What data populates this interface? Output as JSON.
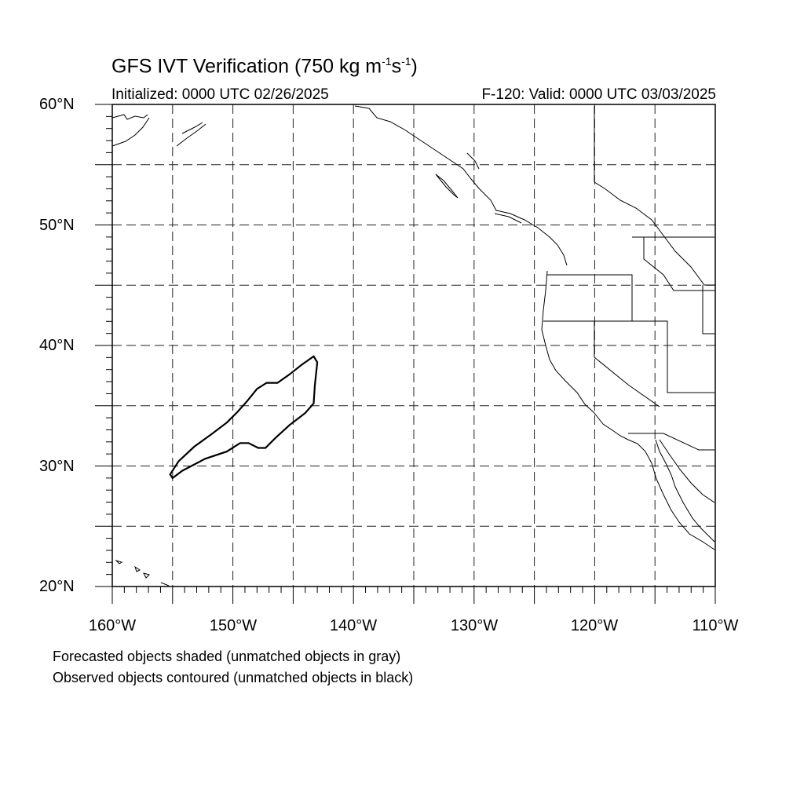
{
  "title": {
    "main": "GFS IVT Verification (750 kg m",
    "exp1": "-1",
    "mid": "s",
    "exp2": "-1",
    "close": ")"
  },
  "initialized": "Initialized: 0000 UTC 02/26/2025",
  "valid": "F-120: Valid: 0000 UTC 03/03/2025",
  "lat_labels": [
    "60°N",
    "50°N",
    "40°N",
    "30°N",
    "20°N"
  ],
  "lon_labels": [
    "160°W",
    "150°W",
    "140°W",
    "130°W",
    "120°W",
    "110°W"
  ],
  "legend_notes": [
    "Forecasted objects shaded (unmatched objects in gray)",
    "Observed objects contoured (unmatched objects in black)"
  ],
  "map": {
    "lon_range": [
      -160,
      -110
    ],
    "lat_range": [
      20,
      60
    ],
    "grid_interval_deg": 5,
    "grid_style": "dashed",
    "observed_object": {
      "status": "unmatched",
      "color": "#000000",
      "outline_lonlat": [
        [
          -155.2,
          29.3
        ],
        [
          -154.5,
          30.4
        ],
        [
          -153.2,
          31.6
        ],
        [
          -151.7,
          32.7
        ],
        [
          -150.5,
          33.6
        ],
        [
          -149.6,
          34.5
        ],
        [
          -148.8,
          35.4
        ],
        [
          -148.0,
          36.4
        ],
        [
          -147.2,
          36.9
        ],
        [
          -146.3,
          36.9
        ],
        [
          -145.3,
          37.6
        ],
        [
          -144.3,
          38.4
        ],
        [
          -143.3,
          39.1
        ],
        [
          -143.0,
          38.6
        ],
        [
          -143.2,
          36.7
        ],
        [
          -143.3,
          35.2
        ],
        [
          -144.0,
          34.4
        ],
        [
          -145.3,
          33.4
        ],
        [
          -146.5,
          32.3
        ],
        [
          -147.3,
          31.5
        ],
        [
          -147.9,
          31.5
        ],
        [
          -148.7,
          31.9
        ],
        [
          -149.4,
          31.9
        ],
        [
          -150.5,
          31.2
        ],
        [
          -152.3,
          30.6
        ],
        [
          -154.2,
          29.6
        ],
        [
          -155.0,
          29.0
        ],
        [
          -155.2,
          29.3
        ]
      ]
    }
  }
}
